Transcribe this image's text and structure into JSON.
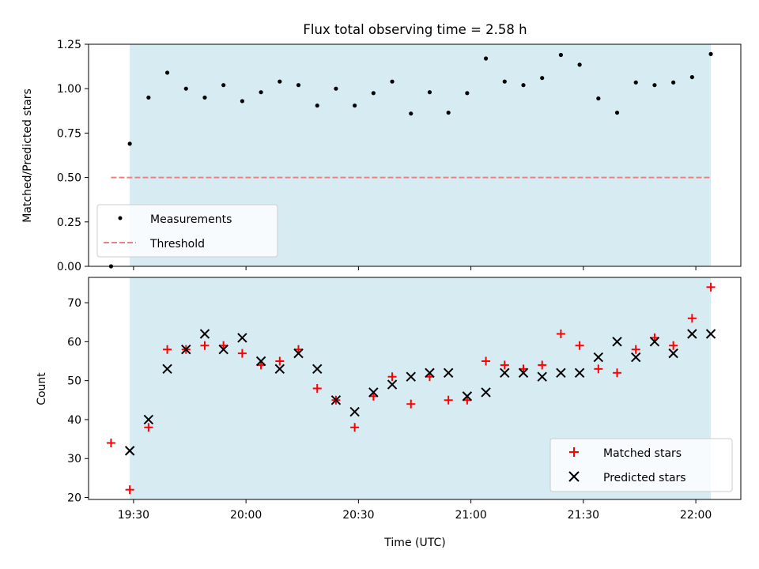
{
  "chart_data": [
    {
      "type": "scatter",
      "title": "Flux total observing time = 2.58 h",
      "xlabel": "",
      "ylabel": "Matched/Predicted stars",
      "xlim": [
        "19:18",
        "22:12"
      ],
      "ylim": [
        0,
        1.25
      ],
      "yticks": [
        "0.00",
        "0.25",
        "0.50",
        "0.75",
        "1.00",
        "1.25"
      ],
      "shaded_interval": [
        "19:29",
        "22:04"
      ],
      "shaded_color": "#add8e6",
      "series": [
        {
          "name": "Measurements",
          "marker": "dot",
          "color": "#000000",
          "x": [
            "19:24",
            "19:29",
            "19:34",
            "19:39",
            "19:44",
            "19:49",
            "19:54",
            "19:59",
            "20:04",
            "20:09",
            "20:14",
            "20:19",
            "20:24",
            "20:29",
            "20:34",
            "20:39",
            "20:44",
            "20:49",
            "20:54",
            "20:59",
            "21:04",
            "21:09",
            "21:14",
            "21:19",
            "21:24",
            "21:29",
            "21:34",
            "21:39",
            "21:44",
            "21:49",
            "21:54",
            "21:59",
            "22:04"
          ],
          "y": [
            0.0,
            0.69,
            0.95,
            1.09,
            1.0,
            0.95,
            1.02,
            0.93,
            0.98,
            1.04,
            1.02,
            0.905,
            1.0,
            0.905,
            0.975,
            1.04,
            0.86,
            0.98,
            0.865,
            0.975,
            1.17,
            1.04,
            1.02,
            1.06,
            1.19,
            1.135,
            0.945,
            0.865,
            1.035,
            1.02,
            1.035,
            1.065,
            1.195
          ]
        },
        {
          "name": "Threshold",
          "marker": "dashed-line",
          "color": "#f08080",
          "x": [
            "19:24",
            "22:04"
          ],
          "y": [
            0.5,
            0.5
          ]
        }
      ],
      "legend": "lower-left"
    },
    {
      "type": "scatter",
      "title": "",
      "xlabel": "Time (UTC)",
      "ylabel": "Count",
      "xlim": [
        "19:18",
        "22:12"
      ],
      "ylim": [
        19.5,
        76.5
      ],
      "xticks": [
        "19:30",
        "20:00",
        "20:30",
        "21:00",
        "21:30",
        "22:00"
      ],
      "yticks": [
        "20",
        "30",
        "40",
        "50",
        "60",
        "70"
      ],
      "shaded_interval": [
        "19:29",
        "22:04"
      ],
      "shaded_color": "#add8e6",
      "series": [
        {
          "name": "Matched stars",
          "marker": "plus",
          "color": "#ff0000",
          "x": [
            "19:24",
            "19:29",
            "19:34",
            "19:39",
            "19:44",
            "19:49",
            "19:54",
            "19:59",
            "20:04",
            "20:09",
            "20:14",
            "20:19",
            "20:24",
            "20:29",
            "20:34",
            "20:39",
            "20:44",
            "20:49",
            "20:54",
            "20:59",
            "21:04",
            "21:09",
            "21:14",
            "21:19",
            "21:24",
            "21:29",
            "21:34",
            "21:39",
            "21:44",
            "21:49",
            "21:54",
            "21:59",
            "22:04"
          ],
          "y": [
            34,
            22,
            38,
            58,
            58,
            59,
            59,
            57,
            54,
            55,
            58,
            48,
            45,
            38,
            46,
            51,
            44,
            51,
            45,
            45,
            55,
            54,
            53,
            54,
            62,
            59,
            53,
            52,
            58,
            61,
            59,
            66,
            74
          ]
        },
        {
          "name": "Predicted stars",
          "marker": "x",
          "color": "#000000",
          "x": [
            "19:29",
            "19:34",
            "19:39",
            "19:44",
            "19:49",
            "19:54",
            "19:59",
            "20:04",
            "20:09",
            "20:14",
            "20:19",
            "20:24",
            "20:29",
            "20:34",
            "20:39",
            "20:44",
            "20:49",
            "20:54",
            "20:59",
            "21:04",
            "21:09",
            "21:14",
            "21:19",
            "21:24",
            "21:29",
            "21:34",
            "21:39",
            "21:44",
            "21:49",
            "21:54",
            "21:59",
            "22:04"
          ],
          "y": [
            32,
            40,
            53,
            58,
            62,
            58,
            61,
            55,
            53,
            57,
            53,
            45,
            42,
            47,
            49,
            51,
            52,
            52,
            46,
            47,
            52,
            52,
            51,
            52,
            52,
            56,
            60,
            56,
            60,
            57,
            62,
            62
          ]
        }
      ],
      "legend": "lower-right"
    }
  ]
}
